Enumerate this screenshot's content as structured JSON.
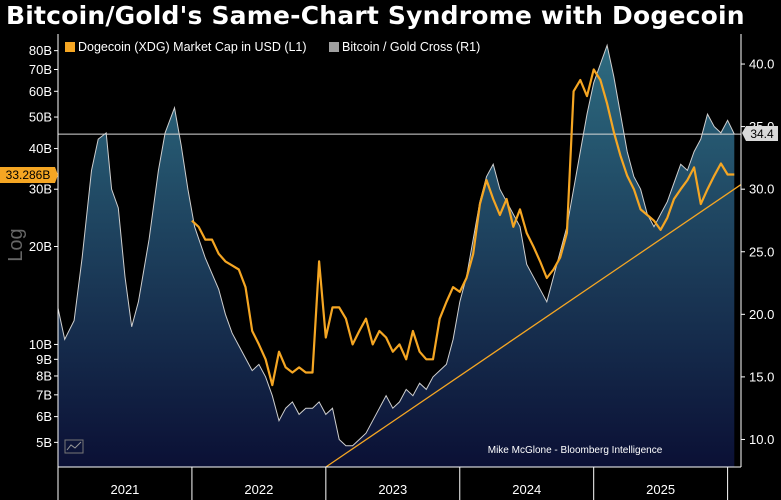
{
  "title": "Bitcoin/Gold's Same-Chart Syndrome with Dogecoin",
  "credit": "Mike McGlone - Bloomberg Intelligence",
  "colors": {
    "doge": "#f5a623",
    "ratio": "#cfcfcf",
    "hline": "#d9d9d9",
    "trend": "#f5a623",
    "area_top": "#2d6b80",
    "area_bottom": "#0b1035"
  },
  "chart_data": {
    "type": "line",
    "title": "Bitcoin/Gold's Same-Chart Syndrome with Dogecoin",
    "ylabel_left": "Log",
    "y_left_scale": "log",
    "y_left_unit": "USD billions",
    "y_left_range": [
      4.2,
      90
    ],
    "y_left_ticks": [
      {
        "value": 5,
        "label": "5B"
      },
      {
        "value": 6,
        "label": "6B"
      },
      {
        "value": 7,
        "label": "7B"
      },
      {
        "value": 8,
        "label": "8B"
      },
      {
        "value": 9,
        "label": "9B"
      },
      {
        "value": 10,
        "label": "10B"
      },
      {
        "value": 20,
        "label": "20B"
      },
      {
        "value": 30,
        "label": "30B"
      },
      {
        "value": 40,
        "label": "40B"
      },
      {
        "value": 50,
        "label": "50B"
      },
      {
        "value": 60,
        "label": "60B"
      },
      {
        "value": 70,
        "label": "70B"
      },
      {
        "value": 80,
        "label": "80B"
      }
    ],
    "y_right_range": [
      7.8,
      42.4
    ],
    "y_right_ticks": [
      {
        "value": 10,
        "label": "10.0"
      },
      {
        "value": 15,
        "label": "15.0"
      },
      {
        "value": 20,
        "label": "20.0"
      },
      {
        "value": 25,
        "label": "25.0"
      },
      {
        "value": 30,
        "label": "30.0"
      },
      {
        "value": 35,
        "label": "35.0"
      },
      {
        "value": 40,
        "label": "40.0"
      }
    ],
    "x_range": [
      2020.5,
      2025.6
    ],
    "x_ticks": [
      {
        "value": 2021,
        "label": "2021"
      },
      {
        "value": 2022,
        "label": "2022"
      },
      {
        "value": 2023,
        "label": "2023"
      },
      {
        "value": 2024,
        "label": "2024"
      },
      {
        "value": 2025,
        "label": "2025"
      }
    ],
    "x_tick_separators": [
      2020.5,
      2021.5,
      2022.5,
      2023.5,
      2024.5,
      2025.5
    ],
    "legend": [
      {
        "name": "Dogecoin (XDG) Market Cap in USD (L1)",
        "color": "#f5a623"
      },
      {
        "name": "Bitcoin / Gold Cross (R1)",
        "color": "#a0a0a0"
      }
    ],
    "series": [
      {
        "name": "Bitcoin / Gold Cross (R1)",
        "axis": "right",
        "style": "area",
        "x": [
          2020.5,
          2020.55,
          2020.62,
          2020.68,
          2020.75,
          2020.8,
          2020.86,
          2020.9,
          2020.95,
          2021.0,
          2021.05,
          2021.1,
          2021.18,
          2021.25,
          2021.3,
          2021.37,
          2021.42,
          2021.47,
          2021.52,
          2021.6,
          2021.7,
          2021.75,
          2021.8,
          2021.85,
          2021.9,
          2021.95,
          2022.0,
          2022.05,
          2022.1,
          2022.15,
          2022.2,
          2022.25,
          2022.3,
          2022.35,
          2022.4,
          2022.45,
          2022.5,
          2022.55,
          2022.6,
          2022.65,
          2022.7,
          2022.75,
          2022.8,
          2022.85,
          2022.9,
          2022.95,
          2023.0,
          2023.05,
          2023.1,
          2023.15,
          2023.2,
          2023.25,
          2023.3,
          2023.35,
          2023.4,
          2023.45,
          2023.5,
          2023.55,
          2023.6,
          2023.65,
          2023.7,
          2023.75,
          2023.8,
          2023.85,
          2023.9,
          2023.95,
          2024.0,
          2024.05,
          2024.1,
          2024.15,
          2024.2,
          2024.25,
          2024.3,
          2024.35,
          2024.4,
          2024.45,
          2024.5,
          2024.55,
          2024.6,
          2024.65,
          2024.7,
          2024.75,
          2024.8,
          2024.85,
          2024.9,
          2024.95,
          2025.0,
          2025.05,
          2025.1,
          2025.15,
          2025.2,
          2025.25,
          2025.3,
          2025.35,
          2025.4,
          2025.45,
          2025.5,
          2025.55
        ],
        "values": [
          20.5,
          18.0,
          19.5,
          24.5,
          31.5,
          34.0,
          34.5,
          30.0,
          28.5,
          23.0,
          19.0,
          21.0,
          26.0,
          31.5,
          34.5,
          36.5,
          33.5,
          30.0,
          27.0,
          24.5,
          22.0,
          20.0,
          18.5,
          17.5,
          16.5,
          15.5,
          16.0,
          15.0,
          13.5,
          11.5,
          12.5,
          13.0,
          12.0,
          12.5,
          12.5,
          13.0,
          12.0,
          12.5,
          10.0,
          9.5,
          9.5,
          10.0,
          10.5,
          11.5,
          12.5,
          13.5,
          12.5,
          13.0,
          14.0,
          13.5,
          14.5,
          14.0,
          15.0,
          15.5,
          16.0,
          18.0,
          21.0,
          23.0,
          26.0,
          29.0,
          31.0,
          32.0,
          30.0,
          29.0,
          28.0,
          27.0,
          24.0,
          23.0,
          22.0,
          21.0,
          23.0,
          25.0,
          27.0,
          30.0,
          33.0,
          36.0,
          38.5,
          40.0,
          41.5,
          39.0,
          36.0,
          33.0,
          31.0,
          30.0,
          28.0,
          27.0,
          28.0,
          29.0,
          30.5,
          32.0,
          31.5,
          33.0,
          34.0,
          36.0,
          35.0,
          34.5,
          35.5,
          34.4
        ]
      },
      {
        "name": "Dogecoin (XDG) Market Cap in USD (L1)",
        "axis": "left",
        "style": "line",
        "x": [
          2021.5,
          2021.55,
          2021.6,
          2021.65,
          2021.7,
          2021.75,
          2021.8,
          2021.85,
          2021.9,
          2021.95,
          2022.0,
          2022.05,
          2022.1,
          2022.15,
          2022.2,
          2022.25,
          2022.3,
          2022.35,
          2022.4,
          2022.45,
          2022.5,
          2022.55,
          2022.6,
          2022.65,
          2022.7,
          2022.75,
          2022.8,
          2022.85,
          2022.9,
          2022.95,
          2023.0,
          2023.05,
          2023.1,
          2023.15,
          2023.2,
          2023.25,
          2023.3,
          2023.35,
          2023.4,
          2023.45,
          2023.5,
          2023.55,
          2023.6,
          2023.65,
          2023.7,
          2023.75,
          2023.8,
          2023.85,
          2023.9,
          2023.95,
          2024.0,
          2024.05,
          2024.1,
          2024.15,
          2024.2,
          2024.25,
          2024.3,
          2024.35,
          2024.4,
          2024.45,
          2024.5,
          2024.55,
          2024.6,
          2024.65,
          2024.7,
          2024.75,
          2024.8,
          2024.85,
          2024.9,
          2024.95,
          2025.0,
          2025.05,
          2025.1,
          2025.15,
          2025.2,
          2025.25,
          2025.3,
          2025.35,
          2025.4,
          2025.45,
          2025.5,
          2025.55
        ],
        "values": [
          24.0,
          23.0,
          21.0,
          21.0,
          19.0,
          18.0,
          17.5,
          17.0,
          15.0,
          11.0,
          10.0,
          9.0,
          7.5,
          9.5,
          8.5,
          8.2,
          8.5,
          8.2,
          8.2,
          18.0,
          10.5,
          13.0,
          13.0,
          12.0,
          10.0,
          11.0,
          12.0,
          10.0,
          11.0,
          10.5,
          9.5,
          10.0,
          9.0,
          11.0,
          9.5,
          9.0,
          9.0,
          12.0,
          13.5,
          15.0,
          14.5,
          16.0,
          19.0,
          27.0,
          32.0,
          28.0,
          25.0,
          28.0,
          23.0,
          26.0,
          22.0,
          20.0,
          18.0,
          16.0,
          17.0,
          18.5,
          22.0,
          60.0,
          65.0,
          58.0,
          70.0,
          65.0,
          55.0,
          45.0,
          38.0,
          33.0,
          30.0,
          26.0,
          25.0,
          24.0,
          22.5,
          24.5,
          28.0,
          30.0,
          32.0,
          35.0,
          27.0,
          30.0,
          33.0,
          36.0,
          33.286,
          33.286
        ]
      }
    ],
    "horizontal_line": {
      "axis": "right",
      "value": 34.4,
      "label": "34.4"
    },
    "trendline": {
      "axis": "left",
      "x": [
        2022.5,
        2025.6
      ],
      "values": [
        4.2,
        31.0
      ]
    },
    "last_value_label_left": "33.286B",
    "last_value_label_right": "34.4"
  }
}
